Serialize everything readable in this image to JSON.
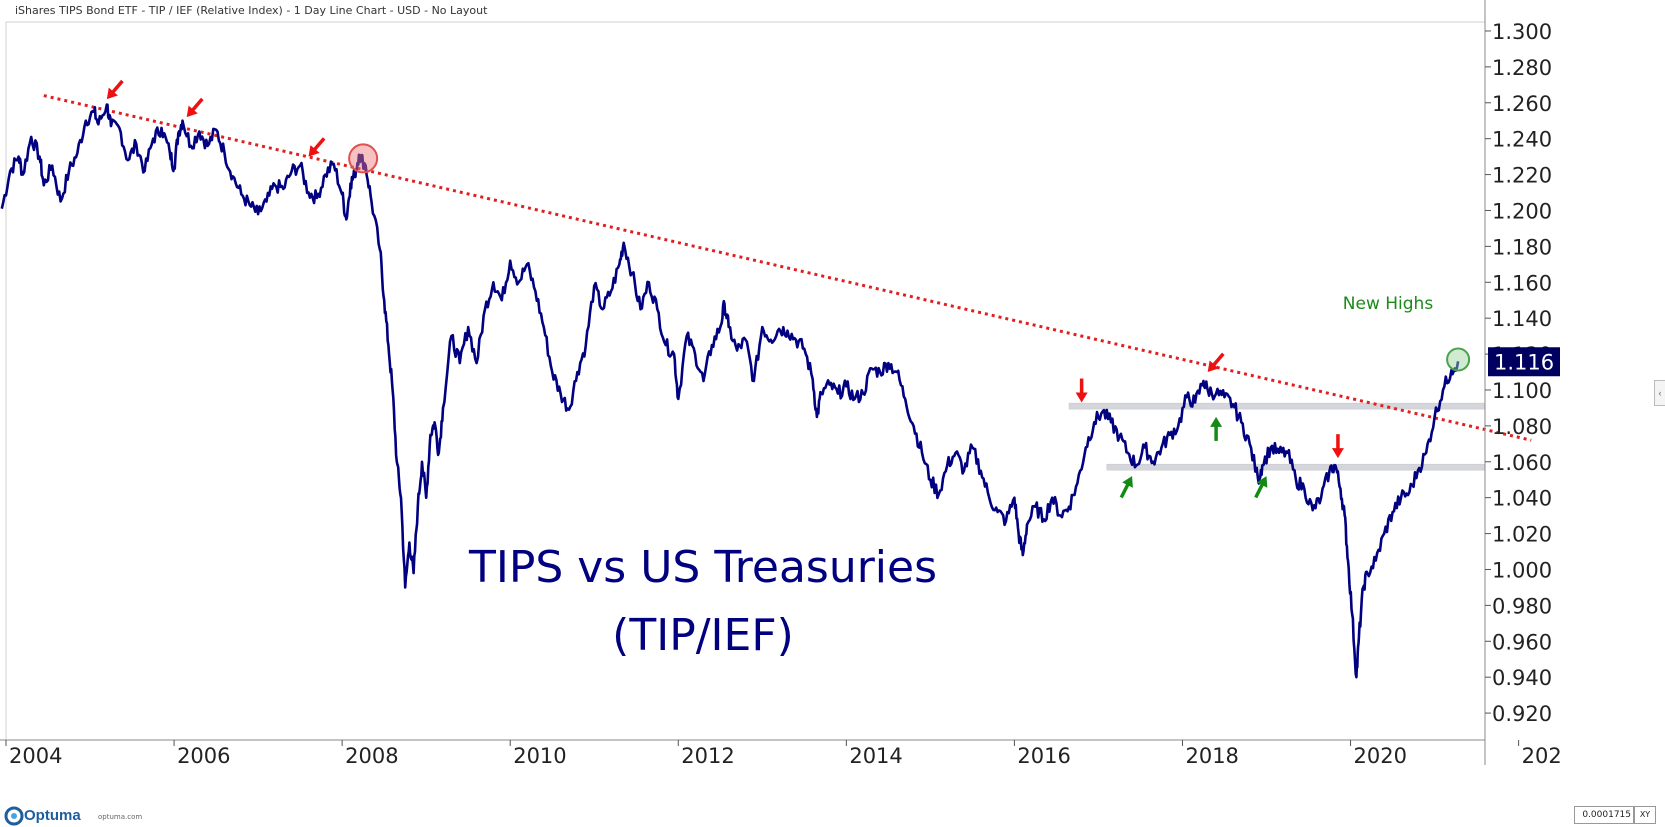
{
  "header": {
    "title": "iShares TIPS Bond ETF - TIP / IEF (Relative Index) - 1 Day Line Chart - USD - No Layout",
    "icons": [
      "diamond-icon",
      "pin-icon",
      "divider-icon",
      "restore-window-icon",
      "close-icon"
    ]
  },
  "footer": {
    "logo_text": "Optuma",
    "logo_url": "optuma.com",
    "scale_value": "0.0001715",
    "xy_label": "XY"
  },
  "chart_data": {
    "type": "line",
    "series": [
      {
        "name": "TIP/IEF",
        "color": "#000080",
        "points": [
          [
            2003.95,
            1.201
          ],
          [
            2004.05,
            1.222
          ],
          [
            2004.15,
            1.23
          ],
          [
            2004.2,
            1.22
          ],
          [
            2004.3,
            1.241
          ],
          [
            2004.4,
            1.23
          ],
          [
            2004.45,
            1.214
          ],
          [
            2004.55,
            1.225
          ],
          [
            2004.65,
            1.205
          ],
          [
            2004.75,
            1.222
          ],
          [
            2004.85,
            1.232
          ],
          [
            2004.95,
            1.25
          ],
          [
            2005.05,
            1.255
          ],
          [
            2005.1,
            1.248
          ],
          [
            2005.2,
            1.259
          ],
          [
            2005.25,
            1.247
          ],
          [
            2005.35,
            1.246
          ],
          [
            2005.45,
            1.228
          ],
          [
            2005.55,
            1.237
          ],
          [
            2005.65,
            1.222
          ],
          [
            2005.75,
            1.24
          ],
          [
            2005.85,
            1.246
          ],
          [
            2005.95,
            1.232
          ],
          [
            2006.0,
            1.224
          ],
          [
            2006.05,
            1.243
          ],
          [
            2006.1,
            1.25
          ],
          [
            2006.2,
            1.236
          ],
          [
            2006.3,
            1.244
          ],
          [
            2006.4,
            1.236
          ],
          [
            2006.5,
            1.245
          ],
          [
            2006.6,
            1.232
          ],
          [
            2006.7,
            1.219
          ],
          [
            2006.8,
            1.209
          ],
          [
            2006.9,
            1.203
          ],
          [
            2007.0,
            1.198
          ],
          [
            2007.1,
            1.205
          ],
          [
            2007.2,
            1.214
          ],
          [
            2007.3,
            1.212
          ],
          [
            2007.4,
            1.222
          ],
          [
            2007.5,
            1.225
          ],
          [
            2007.6,
            1.21
          ],
          [
            2007.7,
            1.207
          ],
          [
            2007.8,
            1.22
          ],
          [
            2007.9,
            1.226
          ],
          [
            2008.0,
            1.209
          ],
          [
            2008.05,
            1.195
          ],
          [
            2008.1,
            1.215
          ],
          [
            2008.15,
            1.22
          ],
          [
            2008.2,
            1.231
          ],
          [
            2008.28,
            1.225
          ],
          [
            2008.35,
            1.205
          ],
          [
            2008.45,
            1.178
          ],
          [
            2008.5,
            1.15
          ],
          [
            2008.55,
            1.125
          ],
          [
            2008.6,
            1.1
          ],
          [
            2008.65,
            1.06
          ],
          [
            2008.7,
            1.04
          ],
          [
            2008.75,
            0.99
          ],
          [
            2008.8,
            1.015
          ],
          [
            2008.85,
            0.998
          ],
          [
            2008.9,
            1.035
          ],
          [
            2008.95,
            1.06
          ],
          [
            2009.0,
            1.04
          ],
          [
            2009.05,
            1.075
          ],
          [
            2009.1,
            1.082
          ],
          [
            2009.15,
            1.065
          ],
          [
            2009.2,
            1.09
          ],
          [
            2009.3,
            1.13
          ],
          [
            2009.4,
            1.115
          ],
          [
            2009.5,
            1.135
          ],
          [
            2009.6,
            1.115
          ],
          [
            2009.7,
            1.145
          ],
          [
            2009.8,
            1.16
          ],
          [
            2009.9,
            1.15
          ],
          [
            2010.0,
            1.172
          ],
          [
            2010.1,
            1.16
          ],
          [
            2010.2,
            1.17
          ],
          [
            2010.3,
            1.155
          ],
          [
            2010.4,
            1.135
          ],
          [
            2010.5,
            1.11
          ],
          [
            2010.6,
            1.098
          ],
          [
            2010.7,
            1.089
          ],
          [
            2010.8,
            1.11
          ],
          [
            2010.9,
            1.125
          ],
          [
            2011.0,
            1.158
          ],
          [
            2011.1,
            1.145
          ],
          [
            2011.2,
            1.155
          ],
          [
            2011.3,
            1.17
          ],
          [
            2011.35,
            1.182
          ],
          [
            2011.45,
            1.165
          ],
          [
            2011.55,
            1.145
          ],
          [
            2011.65,
            1.16
          ],
          [
            2011.75,
            1.145
          ],
          [
            2011.85,
            1.125
          ],
          [
            2011.95,
            1.12
          ],
          [
            2012.0,
            1.095
          ],
          [
            2012.1,
            1.13
          ],
          [
            2012.2,
            1.12
          ],
          [
            2012.3,
            1.105
          ],
          [
            2012.4,
            1.125
          ],
          [
            2012.5,
            1.135
          ],
          [
            2012.55,
            1.148
          ],
          [
            2012.6,
            1.135
          ],
          [
            2012.7,
            1.122
          ],
          [
            2012.8,
            1.128
          ],
          [
            2012.9,
            1.105
          ],
          [
            2013.0,
            1.135
          ],
          [
            2013.1,
            1.128
          ],
          [
            2013.2,
            1.134
          ],
          [
            2013.3,
            1.133
          ],
          [
            2013.4,
            1.128
          ],
          [
            2013.5,
            1.123
          ],
          [
            2013.6,
            1.106
          ],
          [
            2013.65,
            1.085
          ],
          [
            2013.7,
            1.098
          ],
          [
            2013.8,
            1.103
          ],
          [
            2013.9,
            1.098
          ],
          [
            2014.0,
            1.102
          ],
          [
            2014.1,
            1.095
          ],
          [
            2014.2,
            1.098
          ],
          [
            2014.3,
            1.112
          ],
          [
            2014.4,
            1.11
          ],
          [
            2014.5,
            1.115
          ],
          [
            2014.6,
            1.11
          ],
          [
            2014.7,
            1.095
          ],
          [
            2014.8,
            1.08
          ],
          [
            2014.9,
            1.065
          ],
          [
            2015.0,
            1.05
          ],
          [
            2015.1,
            1.042
          ],
          [
            2015.2,
            1.058
          ],
          [
            2015.3,
            1.065
          ],
          [
            2015.4,
            1.055
          ],
          [
            2015.5,
            1.068
          ],
          [
            2015.6,
            1.055
          ],
          [
            2015.7,
            1.04
          ],
          [
            2015.8,
            1.032
          ],
          [
            2015.9,
            1.027
          ],
          [
            2016.0,
            1.04
          ],
          [
            2016.05,
            1.02
          ],
          [
            2016.1,
            1.008
          ],
          [
            2016.15,
            1.025
          ],
          [
            2016.25,
            1.035
          ],
          [
            2016.35,
            1.028
          ],
          [
            2016.45,
            1.04
          ],
          [
            2016.55,
            1.03
          ],
          [
            2016.65,
            1.035
          ],
          [
            2016.75,
            1.048
          ],
          [
            2016.85,
            1.068
          ],
          [
            2016.95,
            1.082
          ],
          [
            2017.05,
            1.088
          ],
          [
            2017.15,
            1.082
          ],
          [
            2017.25,
            1.074
          ],
          [
            2017.35,
            1.065
          ],
          [
            2017.45,
            1.058
          ],
          [
            2017.55,
            1.068
          ],
          [
            2017.65,
            1.06
          ],
          [
            2017.75,
            1.068
          ],
          [
            2017.85,
            1.075
          ],
          [
            2017.95,
            1.08
          ],
          [
            2018.05,
            1.096
          ],
          [
            2018.15,
            1.093
          ],
          [
            2018.25,
            1.105
          ],
          [
            2018.3,
            1.1
          ],
          [
            2018.4,
            1.098
          ],
          [
            2018.5,
            1.096
          ],
          [
            2018.6,
            1.092
          ],
          [
            2018.7,
            1.082
          ],
          [
            2018.8,
            1.07
          ],
          [
            2018.9,
            1.05
          ],
          [
            2018.95,
            1.058
          ],
          [
            2019.05,
            1.068
          ],
          [
            2019.15,
            1.065
          ],
          [
            2019.25,
            1.065
          ],
          [
            2019.35,
            1.05
          ],
          [
            2019.45,
            1.045
          ],
          [
            2019.55,
            1.033
          ],
          [
            2019.65,
            1.04
          ],
          [
            2019.75,
            1.055
          ],
          [
            2019.82,
            1.058
          ],
          [
            2019.88,
            1.045
          ],
          [
            2019.93,
            1.03
          ],
          [
            2019.97,
            1.005
          ],
          [
            2020.02,
            0.975
          ],
          [
            2020.07,
            0.94
          ],
          [
            2020.1,
            0.962
          ],
          [
            2020.15,
            0.99
          ],
          [
            2020.2,
            0.998
          ],
          [
            2020.3,
            1.005
          ],
          [
            2020.4,
            1.02
          ],
          [
            2020.5,
            1.032
          ],
          [
            2020.6,
            1.04
          ],
          [
            2020.7,
            1.043
          ],
          [
            2020.8,
            1.055
          ],
          [
            2020.9,
            1.065
          ],
          [
            2021.0,
            1.085
          ],
          [
            2021.1,
            1.1
          ],
          [
            2021.2,
            1.111
          ],
          [
            2021.28,
            1.116
          ]
        ]
      }
    ],
    "xticks": [
      "2004",
      "2006",
      "2008",
      "2010",
      "2012",
      "2014",
      "2016",
      "2018",
      "2020",
      "202"
    ],
    "xlim": [
      2004,
      2021.6
    ],
    "ylim": [
      0.905,
      1.305
    ],
    "yticks": [
      "1.300",
      "1.280",
      "1.260",
      "1.240",
      "1.220",
      "1.200",
      "1.180",
      "1.160",
      "1.140",
      "1.120",
      "1.100",
      "1.080",
      "1.060",
      "1.040",
      "1.020",
      "1.000",
      "0.980",
      "0.960",
      "0.940",
      "0.920"
    ],
    "last_value_label": "1.116",
    "title_lines": [
      "TIPS vs US Treasuries",
      "(TIP/IEF)"
    ],
    "annotation_new_highs": "New Highs",
    "trendline": {
      "start": [
        2004.45,
        1.264
      ],
      "end": [
        2022.15,
        1.072
      ],
      "color": "#e02020"
    },
    "horizontal_bands": [
      {
        "y": 1.091,
        "x_start": 2016.65,
        "x_end": 2021.6
      },
      {
        "y": 1.057,
        "x_start": 2017.1,
        "x_end": 2021.6
      }
    ],
    "highlight_circles": [
      {
        "x": 2008.25,
        "y": 1.229,
        "kind": "resistance"
      },
      {
        "x": 2021.28,
        "y": 1.117,
        "kind": "new-high"
      }
    ],
    "red_arrows": [
      {
        "x": 2005.2,
        "y": 1.262,
        "dir": "down-left"
      },
      {
        "x": 2006.15,
        "y": 1.252,
        "dir": "down-left"
      },
      {
        "x": 2007.6,
        "y": 1.23,
        "dir": "down-left"
      },
      {
        "x": 2016.8,
        "y": 1.093,
        "dir": "down"
      },
      {
        "x": 2018.3,
        "y": 1.11,
        "dir": "down-left"
      },
      {
        "x": 2019.85,
        "y": 1.062,
        "dir": "down"
      }
    ],
    "green_arrows": [
      {
        "x": 2017.4,
        "y": 1.052,
        "dir": "up-right"
      },
      {
        "x": 2018.4,
        "y": 1.085,
        "dir": "up"
      },
      {
        "x": 2019.0,
        "y": 1.052,
        "dir": "up-right"
      }
    ]
  }
}
